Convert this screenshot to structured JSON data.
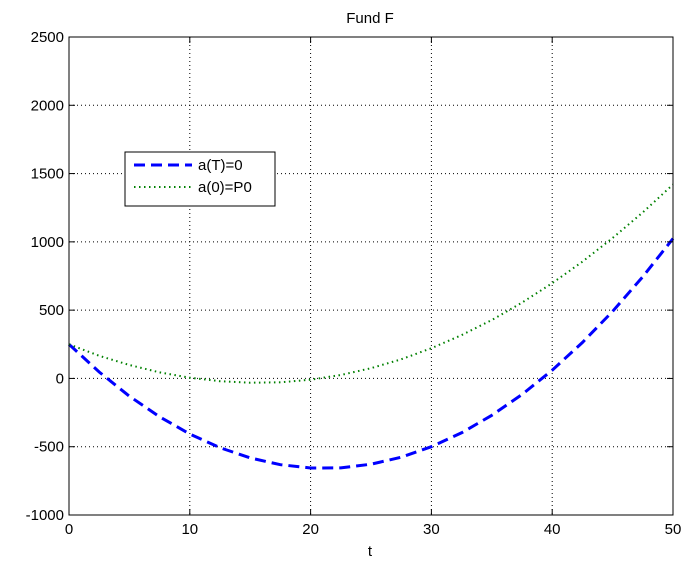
{
  "chart_data": {
    "type": "line",
    "title": "Fund F",
    "xlabel": "t",
    "ylabel": "",
    "xlim": [
      0,
      50
    ],
    "ylim": [
      -1000,
      2500
    ],
    "xticks": [
      0,
      10,
      20,
      30,
      40,
      50
    ],
    "yticks": [
      -1000,
      -500,
      0,
      500,
      1000,
      1500,
      2000,
      2500
    ],
    "grid": true,
    "legend_position": "upper-left",
    "x": [
      0,
      2.5,
      5,
      7.5,
      10,
      12.5,
      15,
      17.5,
      20,
      22.5,
      25,
      27.5,
      30,
      32.5,
      35,
      37.5,
      40,
      42.5,
      45,
      47.5,
      50
    ],
    "series": [
      {
        "name": "a(T)=0",
        "color": "#0000ff",
        "style": "dashed",
        "values": [
          250,
          47,
          -130,
          -281,
          -407,
          -507,
          -582,
          -632,
          -656,
          -655,
          -628,
          -577,
          -500,
          -398,
          -270,
          -118,
          60,
          263,
          491,
          745,
          1024
        ]
      },
      {
        "name": "a(0)=P0",
        "color": "#008000",
        "style": "dotted",
        "values": [
          250,
          166,
          98,
          44,
          5,
          -20,
          -31,
          -28,
          -9,
          25,
          75,
          140,
          221,
          317,
          428,
          555,
          697,
          855,
          1028,
          1216,
          1420
        ]
      }
    ]
  }
}
